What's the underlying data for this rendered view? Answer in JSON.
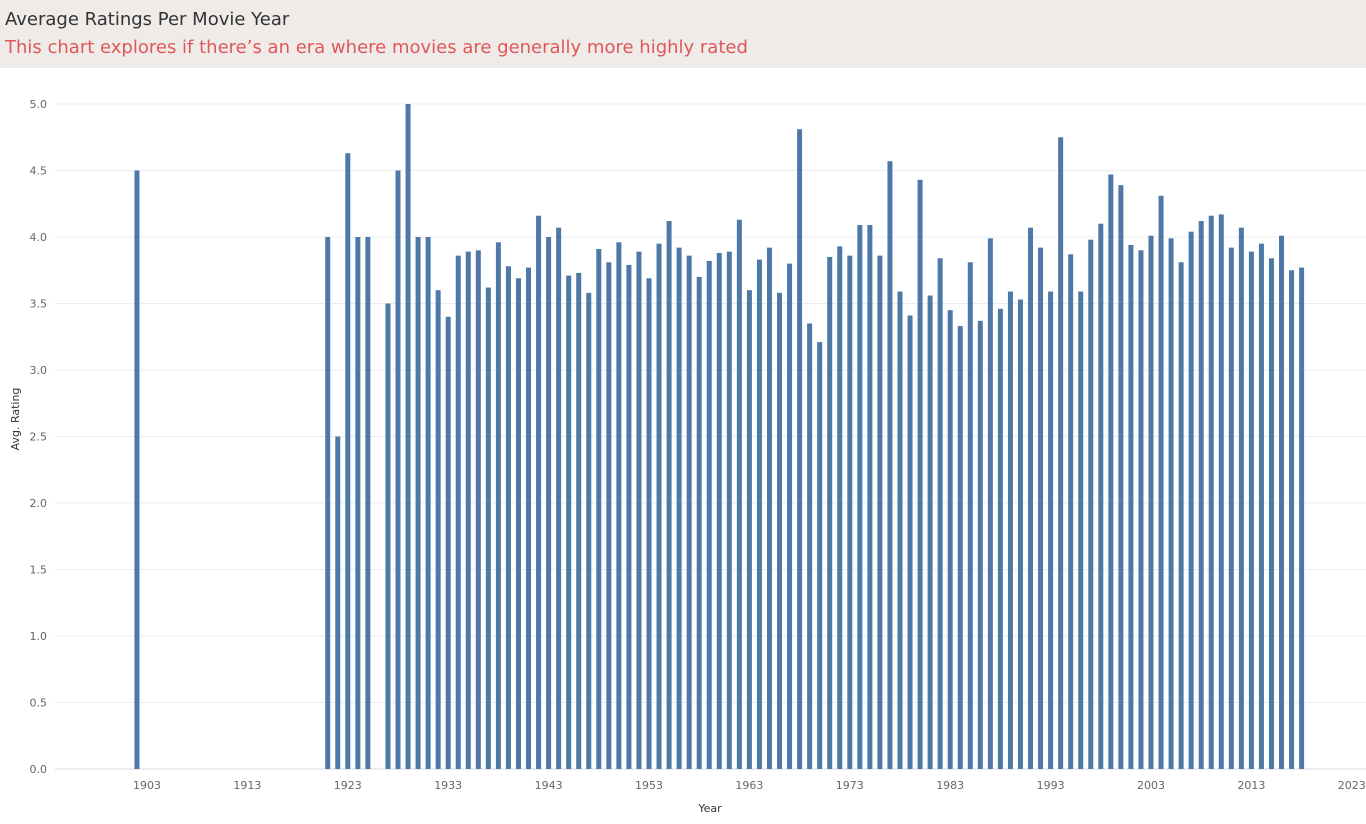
{
  "header": {
    "title": "Average Ratings Per Movie Year",
    "subtitle": "This chart explores if there’s an era where movies are generally more highly rated"
  },
  "chart_data": {
    "type": "bar",
    "xlabel": "Year",
    "ylabel": "Avg. Rating",
    "xlim": [
      1896,
      2024
    ],
    "ylim": [
      0,
      5
    ],
    "grid": true,
    "bar_color": "#4e79a7",
    "x_ticks": [
      1903,
      1913,
      1923,
      1933,
      1943,
      1953,
      1963,
      1973,
      1983,
      1993,
      2003,
      2013,
      2023
    ],
    "y_ticks": [
      "0.0",
      "0.5",
      "1.0",
      "1.5",
      "2.0",
      "2.5",
      "3.0",
      "3.5",
      "4.0",
      "4.5",
      "5.0"
    ],
    "x": [
      1902,
      1921,
      1922,
      1923,
      1924,
      1925,
      1927,
      1928,
      1929,
      1930,
      1931,
      1932,
      1933,
      1934,
      1935,
      1936,
      1937,
      1938,
      1939,
      1940,
      1941,
      1942,
      1943,
      1944,
      1945,
      1946,
      1947,
      1948,
      1949,
      1950,
      1951,
      1952,
      1953,
      1954,
      1955,
      1956,
      1957,
      1958,
      1959,
      1960,
      1961,
      1962,
      1963,
      1964,
      1965,
      1966,
      1967,
      1968,
      1969,
      1970,
      1971,
      1972,
      1973,
      1974,
      1975,
      1976,
      1977,
      1978,
      1979,
      1980,
      1981,
      1982,
      1983,
      1984,
      1985,
      1986,
      1987,
      1988,
      1989,
      1990,
      1991,
      1992,
      1993,
      1994,
      1995,
      1996,
      1997,
      1998,
      1999,
      2000,
      2001,
      2002,
      2003,
      2004,
      2005,
      2006,
      2007,
      2008,
      2009,
      2010,
      2011,
      2012,
      2013,
      2014,
      2015,
      2016,
      2017,
      2018
    ],
    "values": [
      4.5,
      4.0,
      2.5,
      4.63,
      4.0,
      4.0,
      3.5,
      4.5,
      5.0,
      4.0,
      4.0,
      3.6,
      3.4,
      3.86,
      3.89,
      3.9,
      3.62,
      3.96,
      3.78,
      3.69,
      3.77,
      4.16,
      4.0,
      4.07,
      3.71,
      3.73,
      3.58,
      3.91,
      3.81,
      3.96,
      3.79,
      3.89,
      3.69,
      3.95,
      4.12,
      3.92,
      3.86,
      3.7,
      3.82,
      3.88,
      3.89,
      4.13,
      3.6,
      3.83,
      3.92,
      3.58,
      3.8,
      4.81,
      3.35,
      3.21,
      3.85,
      3.93,
      3.86,
      4.09,
      4.09,
      3.86,
      4.57,
      3.59,
      3.41,
      4.43,
      3.56,
      3.84,
      3.45,
      3.33,
      3.81,
      3.37,
      3.99,
      3.46,
      3.59,
      3.53,
      4.07,
      3.92,
      3.59,
      4.75,
      3.87,
      3.59,
      3.98,
      4.1,
      4.47,
      4.39,
      3.94,
      3.9,
      4.01,
      4.31,
      3.99,
      3.81,
      4.04,
      4.12,
      4.16,
      4.17,
      3.92,
      4.07,
      3.89,
      3.95,
      3.84,
      4.01,
      3.75,
      3.77
    ]
  }
}
